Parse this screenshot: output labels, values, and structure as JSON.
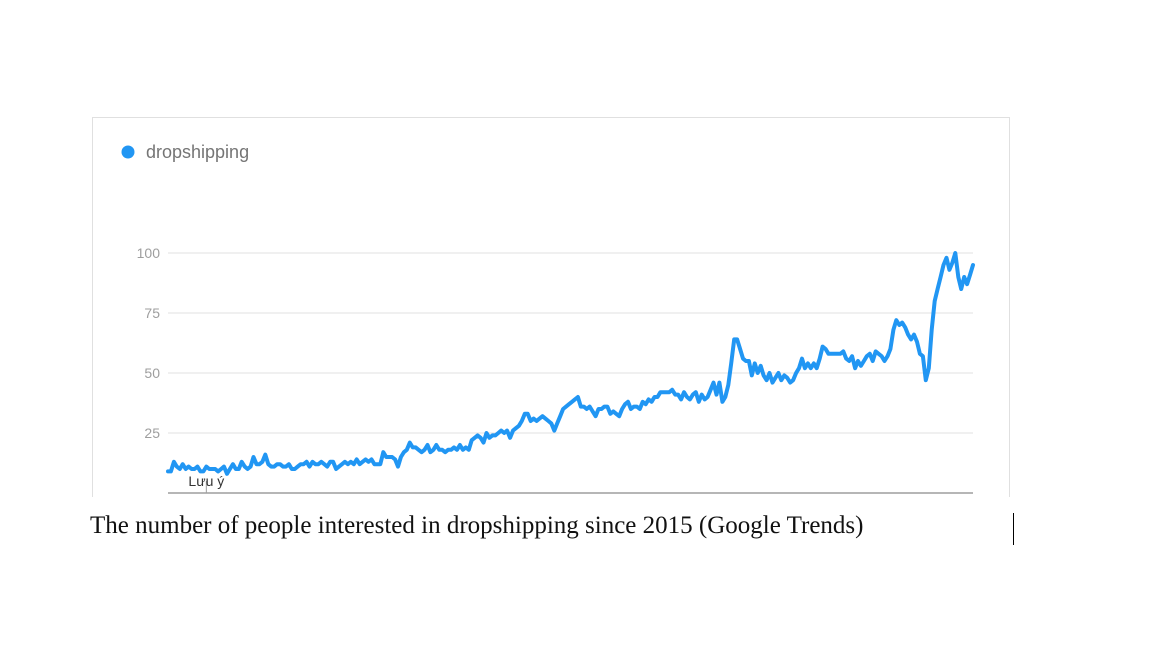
{
  "caption": "The number of people interested in dropshipping since 2015 (Google Trends)",
  "colors": {
    "series": "#2196f3",
    "grid": "#e0e0e0",
    "axis": "#9e9e9e"
  },
  "chart_data": {
    "type": "line",
    "legend_position": "top-left",
    "grid": true,
    "ylim": [
      0,
      100
    ],
    "yticks": [
      25,
      50,
      75,
      100
    ],
    "note_label": "Lưu ý",
    "note_index": 13,
    "series": [
      {
        "name": "dropshipping",
        "values": [
          9,
          9,
          13,
          11,
          10,
          12,
          10,
          11,
          10,
          10,
          11,
          9,
          9,
          11,
          10,
          10,
          10,
          9,
          10,
          11,
          8,
          10,
          12,
          10,
          10,
          13,
          11,
          10,
          11,
          15,
          12,
          12,
          13,
          16,
          12,
          11,
          11,
          12,
          12,
          11,
          11,
          12,
          10,
          10,
          11,
          12,
          12,
          13,
          11,
          13,
          12,
          12,
          13,
          12,
          11,
          13,
          13,
          10,
          11,
          12,
          13,
          12,
          13,
          12,
          14,
          12,
          13,
          14,
          13,
          14,
          12,
          12,
          12,
          17,
          15,
          15,
          15,
          14,
          11,
          15,
          17,
          18,
          21,
          19,
          19,
          18,
          17,
          18,
          20,
          17,
          18,
          20,
          18,
          18,
          17,
          18,
          18,
          19,
          18,
          20,
          18,
          19,
          18,
          22,
          23,
          24,
          23,
          21,
          25,
          23,
          24,
          24,
          25,
          26,
          25,
          26,
          23,
          26,
          27,
          28,
          30,
          33,
          33,
          30,
          31,
          30,
          31,
          32,
          31,
          30,
          29,
          26,
          29,
          32,
          35,
          36,
          37,
          38,
          39,
          40,
          36,
          36,
          35,
          36,
          34,
          32,
          35,
          35,
          36,
          36,
          33,
          34,
          33,
          32,
          35,
          37,
          38,
          35,
          36,
          36,
          35,
          38,
          37,
          39,
          38,
          40,
          40,
          42,
          42,
          42,
          42,
          43,
          41,
          41,
          39,
          42,
          40,
          39,
          41,
          42,
          38,
          41,
          39,
          40,
          43,
          46,
          41,
          46,
          38,
          40,
          45,
          54,
          64,
          64,
          60,
          56,
          55,
          55,
          49,
          54,
          50,
          53,
          49,
          47,
          50,
          46,
          48,
          50,
          47,
          49,
          48,
          46,
          47,
          50,
          52,
          56,
          52,
          54,
          52,
          54,
          52,
          56,
          61,
          60,
          58,
          58,
          58,
          58,
          58,
          59,
          56,
          55,
          57,
          52,
          55,
          53,
          55,
          57,
          58,
          55,
          59,
          58,
          57,
          55,
          57,
          60,
          68,
          72,
          70,
          71,
          69,
          66,
          64,
          66,
          63,
          58,
          57,
          47,
          52,
          68,
          80,
          85,
          90,
          95,
          98,
          93,
          96,
          100,
          90,
          85,
          90,
          87,
          91,
          95
        ]
      }
    ]
  }
}
